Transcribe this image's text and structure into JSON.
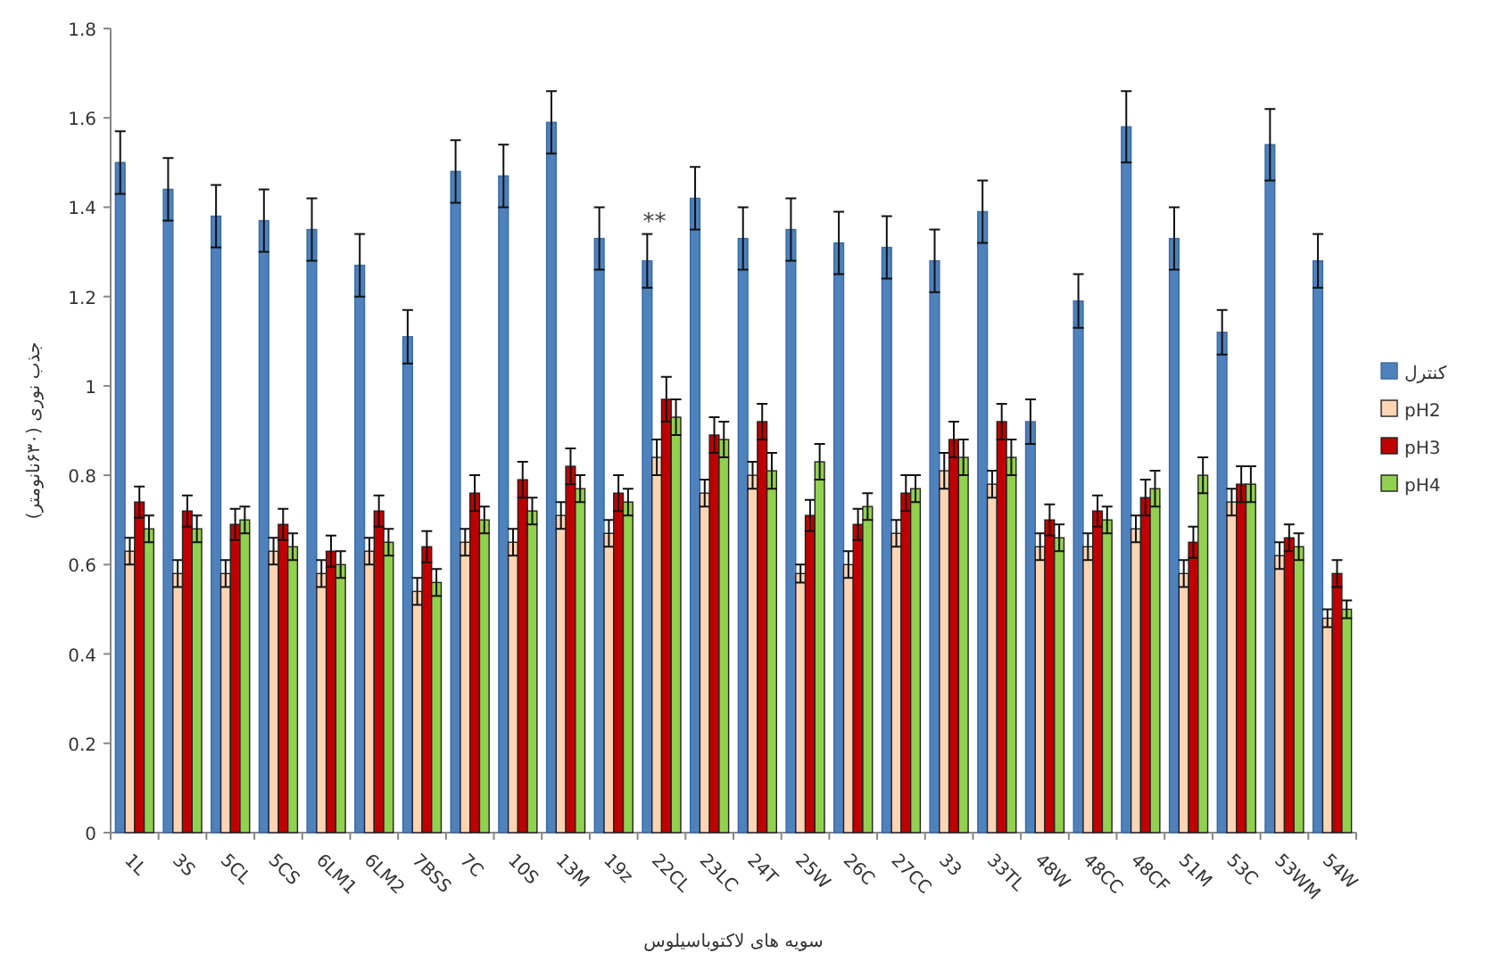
{
  "chart_data": {
    "type": "bar",
    "xlabel": "سویه های لاکتوباسیلوس",
    "ylabel": "جذب نوری (۶۳۰نانومتر)",
    "legend": "right",
    "categories": [
      "1L",
      "3S",
      "5CL",
      "5CS",
      "6LM1",
      "6LM2",
      "7BSS",
      "7C",
      "10S",
      "13M",
      "19z",
      "22CL",
      "23LC",
      "24T",
      "25W",
      "26C",
      "27CC",
      "33",
      "33TL",
      "48W",
      "48CC",
      "48CF",
      "51M",
      "53C",
      "53WM",
      "54W"
    ],
    "ylim": [
      0,
      1.8
    ],
    "yticks": [
      0,
      0.2,
      0.4,
      0.6,
      0.8,
      1,
      1.2,
      1.4,
      1.6,
      1.8
    ],
    "annotations": [
      {
        "text": "**",
        "x": "22CL",
        "y": 1.34
      }
    ],
    "series": [
      {
        "name": "کنترل",
        "color": "#4f81bd",
        "values": [
          1.5,
          1.44,
          1.38,
          1.37,
          1.35,
          1.27,
          1.11,
          1.48,
          1.47,
          1.59,
          1.33,
          1.28,
          1.42,
          1.33,
          1.35,
          1.32,
          1.31,
          1.28,
          1.39,
          0.92,
          1.19,
          1.58,
          1.33,
          1.12,
          1.54,
          1.28
        ],
        "errors": [
          0.07,
          0.07,
          0.07,
          0.07,
          0.07,
          0.07,
          0.06,
          0.07,
          0.07,
          0.07,
          0.07,
          0.06,
          0.07,
          0.07,
          0.07,
          0.07,
          0.07,
          0.07,
          0.07,
          0.05,
          0.06,
          0.08,
          0.07,
          0.05,
          0.08,
          0.06
        ]
      },
      {
        "name": "pH2",
        "color": "#fcd5b5",
        "values": [
          0.63,
          0.58,
          0.58,
          0.63,
          0.58,
          0.63,
          0.54,
          0.65,
          0.65,
          0.71,
          0.67,
          0.84,
          0.76,
          0.8,
          0.58,
          0.6,
          0.67,
          0.81,
          0.78,
          0.64,
          0.64,
          0.68,
          0.58,
          0.74,
          0.62,
          0.48
        ],
        "errors": [
          0.03,
          0.03,
          0.03,
          0.03,
          0.03,
          0.03,
          0.03,
          0.03,
          0.03,
          0.03,
          0.03,
          0.04,
          0.03,
          0.03,
          0.02,
          0.03,
          0.03,
          0.04,
          0.03,
          0.03,
          0.03,
          0.03,
          0.03,
          0.03,
          0.03,
          0.02
        ]
      },
      {
        "name": "pH3",
        "color": "#c00000",
        "values": [
          0.74,
          0.72,
          0.69,
          0.69,
          0.63,
          0.72,
          0.64,
          0.76,
          0.79,
          0.82,
          0.76,
          0.97,
          0.89,
          0.92,
          0.71,
          0.69,
          0.76,
          0.88,
          0.92,
          0.7,
          0.72,
          0.75,
          0.65,
          0.78,
          0.66,
          0.58
        ],
        "errors": [
          0.035,
          0.035,
          0.035,
          0.035,
          0.035,
          0.035,
          0.035,
          0.04,
          0.04,
          0.04,
          0.04,
          0.05,
          0.04,
          0.04,
          0.035,
          0.035,
          0.04,
          0.04,
          0.04,
          0.035,
          0.035,
          0.04,
          0.035,
          0.04,
          0.03,
          0.03
        ]
      },
      {
        "name": "pH4",
        "color": "#92d050",
        "values": [
          0.68,
          0.68,
          0.7,
          0.64,
          0.6,
          0.65,
          0.56,
          0.7,
          0.72,
          0.77,
          0.74,
          0.93,
          0.88,
          0.81,
          0.83,
          0.73,
          0.77,
          0.84,
          0.84,
          0.66,
          0.7,
          0.77,
          0.8,
          0.78,
          0.64,
          0.5
        ],
        "errors": [
          0.03,
          0.03,
          0.03,
          0.03,
          0.03,
          0.03,
          0.03,
          0.03,
          0.03,
          0.03,
          0.03,
          0.04,
          0.04,
          0.04,
          0.04,
          0.03,
          0.03,
          0.04,
          0.04,
          0.03,
          0.03,
          0.04,
          0.04,
          0.04,
          0.03,
          0.02
        ]
      }
    ]
  }
}
